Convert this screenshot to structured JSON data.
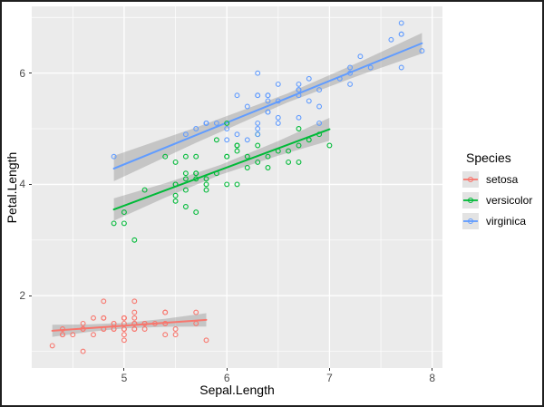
{
  "chart_data": {
    "type": "scatter",
    "title": "",
    "xlabel": "Sepal.Length",
    "ylabel": "Petal.Length",
    "legend_title": "Species",
    "legend_position": "right",
    "xlim": [
      4.1,
      8.1
    ],
    "ylim": [
      0.7,
      7.2
    ],
    "x_major_ticks": [
      5,
      6,
      7,
      8
    ],
    "x_minor_ticks": [
      4.5,
      5.5,
      6.5,
      7.5
    ],
    "y_major_ticks": [
      2,
      4,
      6
    ],
    "y_minor_ticks": [
      1,
      3,
      5,
      7
    ],
    "grid": "on",
    "panel_background": "#EBEBEB",
    "gridline_color": "#FFFFFF",
    "band_color": "#898989",
    "smoothing": "linear fit with 95% confidence band per species",
    "series": [
      {
        "name": "setosa",
        "color": "#F8766D",
        "marker": "open-circle",
        "points": [
          [
            5.1,
            1.4
          ],
          [
            4.9,
            1.4
          ],
          [
            4.7,
            1.3
          ],
          [
            4.6,
            1.5
          ],
          [
            5.0,
            1.4
          ],
          [
            5.4,
            1.7
          ],
          [
            4.6,
            1.4
          ],
          [
            5.0,
            1.5
          ],
          [
            4.4,
            1.4
          ],
          [
            4.9,
            1.5
          ],
          [
            5.4,
            1.5
          ],
          [
            4.8,
            1.6
          ],
          [
            4.8,
            1.4
          ],
          [
            4.3,
            1.1
          ],
          [
            5.8,
            1.2
          ],
          [
            5.7,
            1.5
          ],
          [
            5.4,
            1.3
          ],
          [
            5.1,
            1.4
          ],
          [
            5.7,
            1.7
          ],
          [
            5.1,
            1.5
          ],
          [
            5.4,
            1.7
          ],
          [
            5.1,
            1.5
          ],
          [
            4.6,
            1.0
          ],
          [
            5.1,
            1.7
          ],
          [
            4.8,
            1.9
          ],
          [
            5.0,
            1.6
          ],
          [
            5.0,
            1.6
          ],
          [
            5.2,
            1.5
          ],
          [
            5.2,
            1.4
          ],
          [
            4.7,
            1.6
          ],
          [
            4.8,
            1.6
          ],
          [
            5.4,
            1.5
          ],
          [
            5.2,
            1.5
          ],
          [
            5.5,
            1.4
          ],
          [
            4.9,
            1.5
          ],
          [
            5.0,
            1.2
          ],
          [
            5.5,
            1.3
          ],
          [
            4.9,
            1.4
          ],
          [
            4.4,
            1.3
          ],
          [
            5.1,
            1.5
          ],
          [
            5.0,
            1.3
          ],
          [
            4.5,
            1.3
          ],
          [
            4.4,
            1.3
          ],
          [
            5.0,
            1.6
          ],
          [
            5.1,
            1.9
          ],
          [
            4.8,
            1.4
          ],
          [
            5.1,
            1.6
          ],
          [
            4.6,
            1.4
          ],
          [
            5.3,
            1.5
          ],
          [
            5.0,
            1.4
          ]
        ],
        "regression_line": [
          [
            4.3,
            1.369
          ],
          [
            5.8,
            1.566
          ]
        ],
        "confidence_band": [
          [
            4.3,
            1.261,
            1.477
          ],
          [
            4.65,
            1.346,
            1.484
          ],
          [
            5.006,
            1.414,
            1.51
          ],
          [
            5.4,
            1.441,
            1.586
          ],
          [
            5.8,
            1.446,
            1.686
          ]
        ]
      },
      {
        "name": "versicolor",
        "color": "#00BA38",
        "marker": "open-circle",
        "points": [
          [
            7.0,
            4.7
          ],
          [
            6.4,
            4.5
          ],
          [
            6.9,
            4.9
          ],
          [
            5.5,
            4.0
          ],
          [
            6.5,
            4.6
          ],
          [
            5.7,
            4.5
          ],
          [
            6.3,
            4.7
          ],
          [
            4.9,
            3.3
          ],
          [
            6.6,
            4.6
          ],
          [
            5.2,
            3.9
          ],
          [
            5.0,
            3.5
          ],
          [
            5.9,
            4.2
          ],
          [
            6.0,
            4.0
          ],
          [
            6.1,
            4.7
          ],
          [
            5.6,
            3.6
          ],
          [
            6.7,
            4.4
          ],
          [
            5.6,
            4.5
          ],
          [
            5.8,
            4.1
          ],
          [
            6.2,
            4.5
          ],
          [
            5.6,
            3.9
          ],
          [
            5.9,
            4.8
          ],
          [
            6.1,
            4.0
          ],
          [
            6.3,
            4.9
          ],
          [
            6.1,
            4.7
          ],
          [
            6.4,
            4.3
          ],
          [
            6.6,
            4.4
          ],
          [
            6.8,
            4.8
          ],
          [
            6.7,
            5.0
          ],
          [
            6.0,
            4.5
          ],
          [
            5.7,
            3.5
          ],
          [
            5.5,
            3.8
          ],
          [
            5.5,
            3.7
          ],
          [
            5.8,
            3.9
          ],
          [
            6.0,
            5.1
          ],
          [
            5.4,
            4.5
          ],
          [
            6.0,
            4.5
          ],
          [
            6.7,
            4.7
          ],
          [
            6.3,
            4.4
          ],
          [
            5.6,
            4.1
          ],
          [
            5.5,
            4.0
          ],
          [
            5.5,
            4.4
          ],
          [
            6.1,
            4.6
          ],
          [
            5.8,
            4.0
          ],
          [
            5.0,
            3.3
          ],
          [
            5.6,
            4.2
          ],
          [
            5.7,
            4.2
          ],
          [
            5.7,
            4.2
          ],
          [
            6.2,
            4.3
          ],
          [
            5.1,
            3.0
          ],
          [
            5.7,
            4.1
          ]
        ],
        "regression_line": [
          [
            4.9,
            3.549
          ],
          [
            7.0,
            4.991
          ]
        ],
        "confidence_band": [
          [
            4.9,
            3.348,
            3.75
          ],
          [
            5.4,
            3.763,
            4.021
          ],
          [
            5.936,
            4.171,
            4.349
          ],
          [
            6.5,
            4.515,
            4.779
          ],
          [
            7.0,
            4.786,
            5.196
          ]
        ]
      },
      {
        "name": "virginica",
        "color": "#619CFF",
        "marker": "open-circle",
        "points": [
          [
            6.3,
            6.0
          ],
          [
            5.8,
            5.1
          ],
          [
            7.1,
            5.9
          ],
          [
            6.3,
            5.6
          ],
          [
            6.5,
            5.8
          ],
          [
            7.6,
            6.6
          ],
          [
            4.9,
            4.5
          ],
          [
            7.3,
            6.3
          ],
          [
            6.7,
            5.8
          ],
          [
            7.2,
            6.1
          ],
          [
            6.5,
            5.1
          ],
          [
            6.4,
            5.3
          ],
          [
            6.8,
            5.5
          ],
          [
            5.7,
            5.0
          ],
          [
            5.8,
            5.1
          ],
          [
            6.4,
            5.3
          ],
          [
            6.5,
            5.5
          ],
          [
            7.7,
            6.7
          ],
          [
            7.7,
            6.9
          ],
          [
            6.0,
            5.0
          ],
          [
            6.9,
            5.7
          ],
          [
            5.6,
            4.9
          ],
          [
            7.7,
            6.7
          ],
          [
            6.3,
            4.9
          ],
          [
            6.7,
            5.7
          ],
          [
            7.2,
            6.0
          ],
          [
            6.2,
            4.8
          ],
          [
            6.1,
            4.9
          ],
          [
            6.4,
            5.6
          ],
          [
            7.2,
            5.8
          ],
          [
            7.4,
            6.1
          ],
          [
            7.9,
            6.4
          ],
          [
            6.4,
            5.6
          ],
          [
            6.3,
            5.1
          ],
          [
            6.1,
            5.6
          ],
          [
            7.7,
            6.1
          ],
          [
            6.3,
            5.6
          ],
          [
            6.4,
            5.5
          ],
          [
            6.0,
            4.8
          ],
          [
            6.9,
            5.4
          ],
          [
            6.7,
            5.6
          ],
          [
            6.9,
            5.1
          ],
          [
            5.8,
            5.1
          ],
          [
            6.8,
            5.9
          ],
          [
            6.7,
            5.7
          ],
          [
            6.7,
            5.2
          ],
          [
            6.3,
            5.0
          ],
          [
            6.5,
            5.2
          ],
          [
            6.2,
            5.4
          ],
          [
            5.9,
            5.1
          ]
        ],
        "regression_line": [
          [
            4.9,
            4.285
          ],
          [
            7.9,
            6.536
          ]
        ],
        "confidence_band": [
          [
            4.9,
            4.057,
            4.513
          ],
          [
            5.7,
            4.748,
            5.024
          ],
          [
            6.588,
            5.472,
            5.632
          ],
          [
            7.3,
            5.966,
            6.206
          ],
          [
            7.9,
            6.352,
            6.721
          ]
        ]
      }
    ]
  }
}
